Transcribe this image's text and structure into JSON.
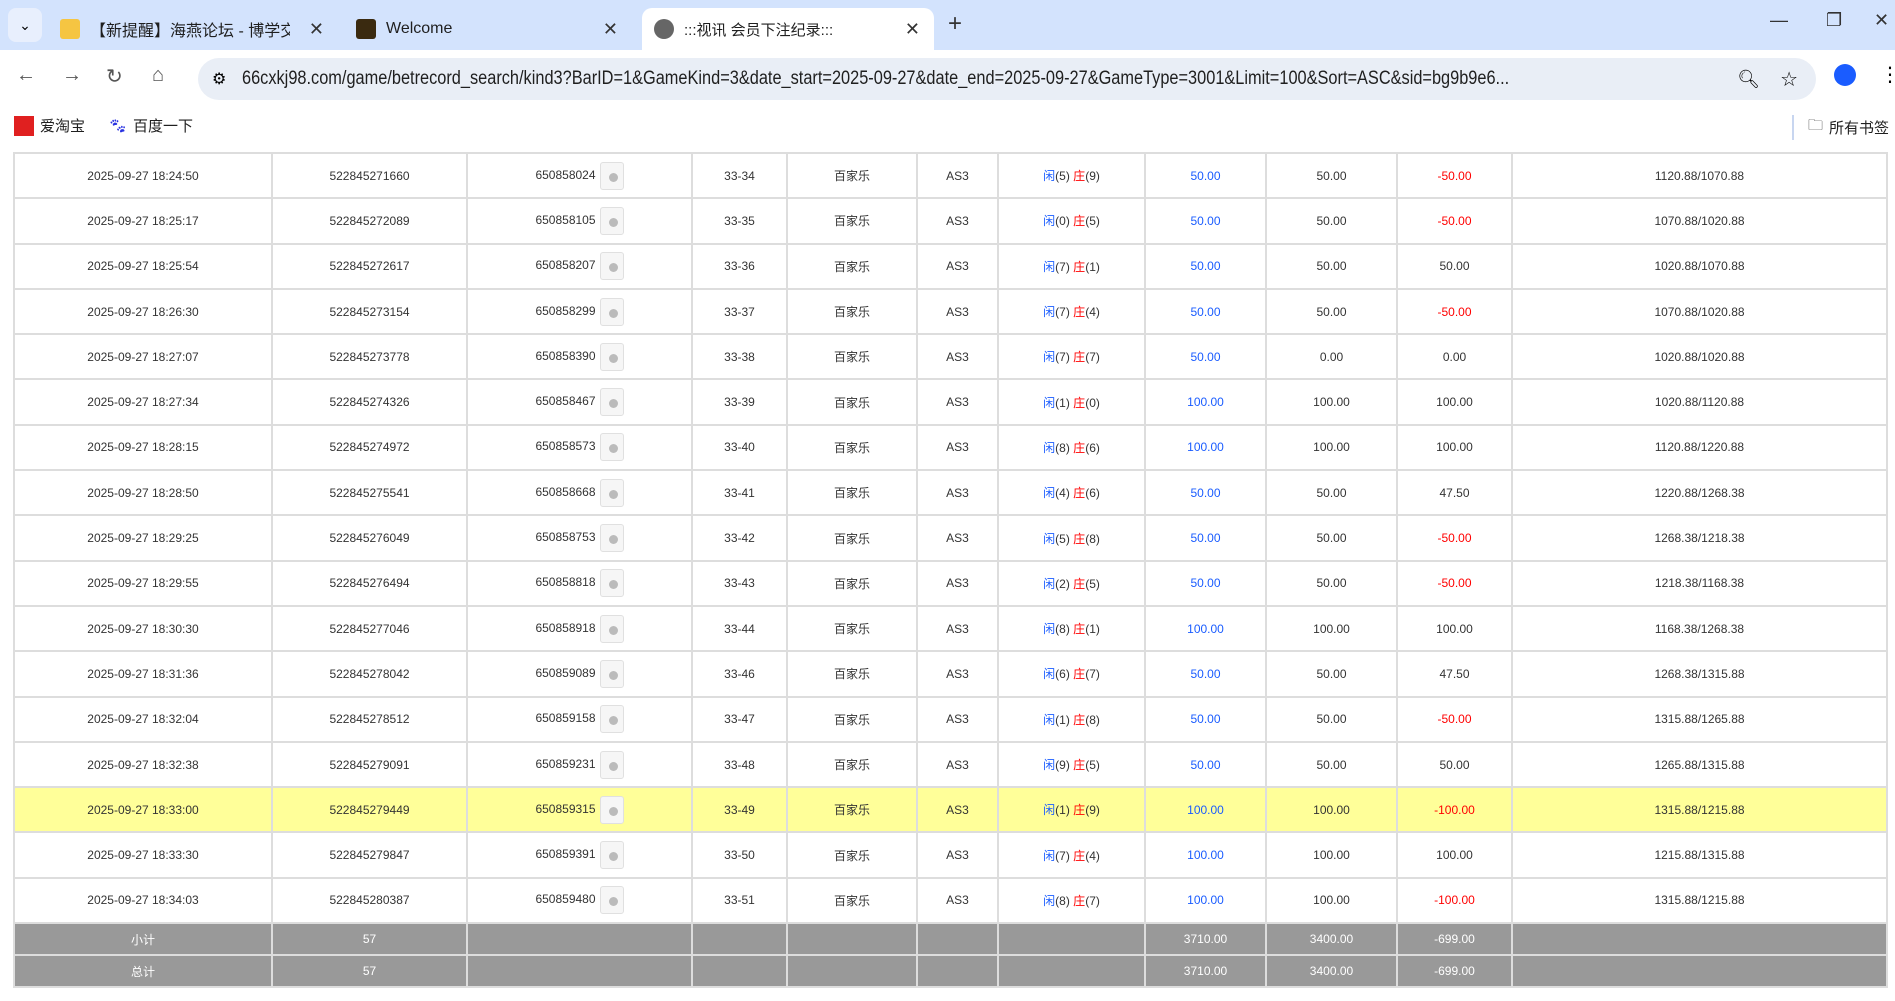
{
  "browser": {
    "tabs": [
      {
        "title": "【新提醒】海燕论坛 - 博学交流",
        "icon": "forum-favicon"
      },
      {
        "title": "Welcome",
        "icon": "welcome-favicon"
      },
      {
        "title": ":::视讯 会员下注纪录:::",
        "icon": "globe-icon",
        "active": true
      }
    ],
    "url": "66cxkj98.com/game/betrecord_search/kind3?BarID=1&GameKind=3&date_start=2025-09-27&date_end=2025-09-27&GameType=3001&Limit=100&Sort=ASC&sid=bg9b9e6...",
    "bookmarks": [
      "爱淘宝",
      "百度一下"
    ],
    "all_bookmarks": "所有书签"
  },
  "colors": {
    "blue": "#1a5cff",
    "red": "#ff0000",
    "highlight": "#ffff99",
    "footer": "#999999"
  },
  "rows": [
    [
      "2025-09-27 18:24:50",
      "522845271660",
      "650858024",
      "33-34",
      "百家乐",
      "AS3",
      "5",
      "9",
      "50.00",
      "50.00",
      "-50.00",
      "1120.88/1070.88"
    ],
    [
      "2025-09-27 18:25:17",
      "522845272089",
      "650858105",
      "33-35",
      "百家乐",
      "AS3",
      "0",
      "5",
      "50.00",
      "50.00",
      "-50.00",
      "1070.88/1020.88"
    ],
    [
      "2025-09-27 18:25:54",
      "522845272617",
      "650858207",
      "33-36",
      "百家乐",
      "AS3",
      "7",
      "1",
      "50.00",
      "50.00",
      "50.00",
      "1020.88/1070.88"
    ],
    [
      "2025-09-27 18:26:30",
      "522845273154",
      "650858299",
      "33-37",
      "百家乐",
      "AS3",
      "7",
      "4",
      "50.00",
      "50.00",
      "-50.00",
      "1070.88/1020.88"
    ],
    [
      "2025-09-27 18:27:07",
      "522845273778",
      "650858390",
      "33-38",
      "百家乐",
      "AS3",
      "7",
      "7",
      "50.00",
      "0.00",
      "0.00",
      "1020.88/1020.88"
    ],
    [
      "2025-09-27 18:27:34",
      "522845274326",
      "650858467",
      "33-39",
      "百家乐",
      "AS3",
      "1",
      "0",
      "100.00",
      "100.00",
      "100.00",
      "1020.88/1120.88"
    ],
    [
      "2025-09-27 18:28:15",
      "522845274972",
      "650858573",
      "33-40",
      "百家乐",
      "AS3",
      "8",
      "6",
      "100.00",
      "100.00",
      "100.00",
      "1120.88/1220.88"
    ],
    [
      "2025-09-27 18:28:50",
      "522845275541",
      "650858668",
      "33-41",
      "百家乐",
      "AS3",
      "4",
      "6",
      "50.00",
      "50.00",
      "47.50",
      "1220.88/1268.38"
    ],
    [
      "2025-09-27 18:29:25",
      "522845276049",
      "650858753",
      "33-42",
      "百家乐",
      "AS3",
      "5",
      "8",
      "50.00",
      "50.00",
      "-50.00",
      "1268.38/1218.38"
    ],
    [
      "2025-09-27 18:29:55",
      "522845276494",
      "650858818",
      "33-43",
      "百家乐",
      "AS3",
      "2",
      "5",
      "50.00",
      "50.00",
      "-50.00",
      "1218.38/1168.38"
    ],
    [
      "2025-09-27 18:30:30",
      "522845277046",
      "650858918",
      "33-44",
      "百家乐",
      "AS3",
      "8",
      "1",
      "100.00",
      "100.00",
      "100.00",
      "1168.38/1268.38"
    ],
    [
      "2025-09-27 18:31:36",
      "522845278042",
      "650859089",
      "33-46",
      "百家乐",
      "AS3",
      "6",
      "7",
      "50.00",
      "50.00",
      "47.50",
      "1268.38/1315.88"
    ],
    [
      "2025-09-27 18:32:04",
      "522845278512",
      "650859158",
      "33-47",
      "百家乐",
      "AS3",
      "1",
      "8",
      "50.00",
      "50.00",
      "-50.00",
      "1315.88/1265.88"
    ],
    [
      "2025-09-27 18:32:38",
      "522845279091",
      "650859231",
      "33-48",
      "百家乐",
      "AS3",
      "9",
      "5",
      "50.00",
      "50.00",
      "50.00",
      "1265.88/1315.88"
    ],
    [
      "2025-09-27 18:33:00",
      "522845279449",
      "650859315",
      "33-49",
      "百家乐",
      "AS3",
      "1",
      "9",
      "100.00",
      "100.00",
      "-100.00",
      "1315.88/1215.88"
    ],
    [
      "2025-09-27 18:33:30",
      "522845279847",
      "650859391",
      "33-50",
      "百家乐",
      "AS3",
      "7",
      "4",
      "100.00",
      "100.00",
      "100.00",
      "1215.88/1315.88"
    ],
    [
      "2025-09-27 18:34:03",
      "522845280387",
      "650859480",
      "33-51",
      "百家乐",
      "AS3",
      "8",
      "7",
      "100.00",
      "100.00",
      "-100.00",
      "1315.88/1215.88"
    ]
  ],
  "highlighted_row": 14,
  "player_label": "闲",
  "banker_label": "庄",
  "footer": [
    {
      "label": "小计",
      "count": "57",
      "bet": "3710.00",
      "valid": "3400.00",
      "result": "-699.00"
    },
    {
      "label": "总计",
      "count": "57",
      "bet": "3710.00",
      "valid": "3400.00",
      "result": "-699.00"
    }
  ]
}
